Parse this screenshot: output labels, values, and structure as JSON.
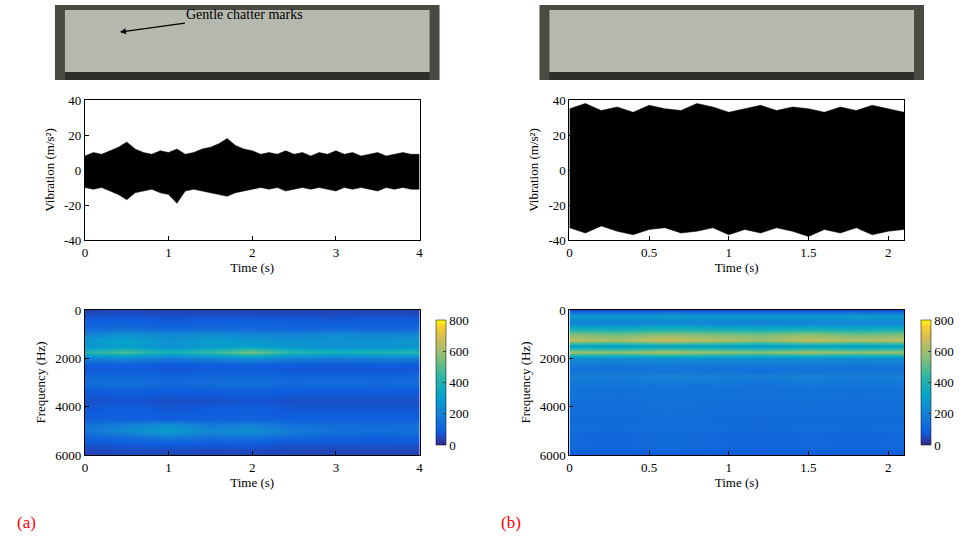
{
  "panels": [
    {
      "label": "(a)",
      "annotation": "Gentle chatter marks"
    },
    {
      "label": "(b)"
    }
  ],
  "chart_data": [
    {
      "panel": "(a)",
      "type": "line",
      "color": "#000000",
      "x": [
        0,
        0.1,
        0.2,
        0.3,
        0.4,
        0.5,
        0.6,
        0.7,
        0.8,
        0.9,
        1,
        1.1,
        1.2,
        1.3,
        1.4,
        1.5,
        1.6,
        1.7,
        1.8,
        1.9,
        2,
        2.1,
        2.2,
        2.3,
        2.4,
        2.5,
        2.6,
        2.7,
        2.8,
        2.9,
        3,
        3.1,
        3.2,
        3.3,
        3.4,
        3.5,
        3.6,
        3.7,
        3.8,
        3.9,
        4
      ],
      "upper": [
        8,
        10,
        9,
        11,
        13,
        16,
        12,
        10,
        9,
        11,
        10,
        12,
        9,
        10,
        12,
        13,
        15,
        18,
        14,
        12,
        11,
        9,
        10,
        9,
        11,
        9,
        10,
        8,
        10,
        9,
        11,
        9,
        10,
        8,
        9,
        10,
        8,
        9,
        10,
        9,
        9
      ],
      "lower": [
        -10,
        -11,
        -10,
        -12,
        -14,
        -17,
        -13,
        -12,
        -11,
        -13,
        -14,
        -19,
        -12,
        -11,
        -12,
        -13,
        -14,
        -15,
        -13,
        -12,
        -11,
        -10,
        -11,
        -10,
        -12,
        -11,
        -10,
        -11,
        -10,
        -11,
        -12,
        -10,
        -11,
        -10,
        -11,
        -12,
        -10,
        -11,
        -10,
        -11,
        -11
      ],
      "xlabel": "Time (s)",
      "ylabel": "Vibration (m/s²)",
      "xlim": [
        0,
        4
      ],
      "xticks": [
        0,
        1,
        2,
        3,
        4
      ],
      "ylim": [
        -40,
        40
      ],
      "yticks": [
        -40,
        -20,
        0,
        20,
        40
      ]
    },
    {
      "panel": "(a)",
      "type": "heatmap",
      "x": [
        0,
        0.5,
        1,
        1.5,
        2,
        2.5,
        3,
        3.5,
        4
      ],
      "y": [
        0,
        250,
        500,
        750,
        1000,
        1250,
        1500,
        1750,
        2000,
        2250,
        2500,
        2750,
        3000,
        3250,
        3500,
        3750,
        4000,
        4250,
        4500,
        4750,
        5000,
        5250,
        5500,
        5750,
        6000
      ],
      "z": [
        [
          40,
          40,
          40,
          40,
          40,
          40,
          40,
          40,
          40
        ],
        [
          60,
          70,
          60,
          65,
          60,
          60,
          60,
          65,
          60
        ],
        [
          90,
          100,
          80,
          90,
          100,
          90,
          80,
          90,
          85
        ],
        [
          120,
          140,
          110,
          130,
          120,
          110,
          120,
          110,
          120
        ],
        [
          200,
          250,
          220,
          230,
          210,
          200,
          220,
          210,
          200
        ],
        [
          280,
          320,
          260,
          300,
          280,
          250,
          270,
          260,
          280
        ],
        [
          260,
          300,
          250,
          280,
          300,
          260,
          240,
          250,
          260
        ],
        [
          420,
          480,
          380,
          450,
          550,
          420,
          380,
          400,
          420
        ],
        [
          200,
          230,
          180,
          210,
          250,
          200,
          190,
          200,
          190
        ],
        [
          90,
          100,
          80,
          90,
          100,
          90,
          80,
          90,
          90
        ],
        [
          70,
          80,
          70,
          75,
          80,
          70,
          70,
          70,
          70
        ],
        [
          110,
          120,
          100,
          110,
          120,
          100,
          110,
          100,
          110
        ],
        [
          140,
          150,
          130,
          140,
          150,
          130,
          140,
          130,
          140
        ],
        [
          90,
          100,
          90,
          95,
          100,
          90,
          90,
          90,
          90
        ],
        [
          70,
          80,
          70,
          75,
          80,
          70,
          70,
          70,
          70
        ],
        [
          60,
          70,
          60,
          60,
          70,
          60,
          60,
          60,
          60
        ],
        [
          70,
          80,
          70,
          75,
          80,
          70,
          70,
          70,
          70
        ],
        [
          80,
          90,
          80,
          85,
          90,
          80,
          80,
          80,
          80
        ],
        [
          90,
          100,
          90,
          100,
          110,
          90,
          90,
          90,
          90
        ],
        [
          150,
          200,
          250,
          180,
          200,
          150,
          140,
          130,
          140
        ],
        [
          160,
          230,
          300,
          220,
          250,
          180,
          150,
          140,
          150
        ],
        [
          100,
          140,
          180,
          150,
          160,
          120,
          100,
          90,
          100
        ],
        [
          70,
          80,
          90,
          80,
          80,
          70,
          70,
          70,
          70
        ],
        [
          50,
          60,
          60,
          55,
          60,
          50,
          50,
          50,
          50
        ],
        [
          40,
          40,
          40,
          40,
          40,
          40,
          40,
          40,
          40
        ]
      ],
      "xlabel": "Time (s)",
      "ylabel": "Frequency (Hz)",
      "xlim": [
        0,
        4
      ],
      "xticks": [
        0,
        1,
        2,
        3,
        4
      ],
      "ylim": [
        6000,
        0
      ],
      "yticks": [
        0,
        2000,
        4000,
        6000
      ],
      "zlim": [
        0,
        800
      ],
      "zticks": [
        0,
        200,
        400,
        600,
        800
      ]
    },
    {
      "panel": "(b)",
      "type": "line",
      "color": "#000000",
      "x": [
        0,
        0.1,
        0.2,
        0.3,
        0.4,
        0.5,
        0.6,
        0.7,
        0.8,
        0.9,
        1,
        1.1,
        1.2,
        1.3,
        1.4,
        1.5,
        1.6,
        1.7,
        1.8,
        1.9,
        2,
        2.1
      ],
      "upper": [
        35,
        38,
        34,
        36,
        33,
        37,
        35,
        34,
        38,
        36,
        33,
        35,
        37,
        34,
        36,
        35,
        33,
        36,
        34,
        37,
        35,
        33
      ],
      "lower": [
        -33,
        -36,
        -32,
        -35,
        -37,
        -34,
        -33,
        -36,
        -35,
        -33,
        -37,
        -34,
        -36,
        -33,
        -35,
        -38,
        -34,
        -36,
        -33,
        -37,
        -35,
        -34
      ],
      "xlabel": "Time (s)",
      "ylabel": "Vibration (m/s²)",
      "xlim": [
        0,
        2.1
      ],
      "xticks": [
        0,
        0.5,
        1,
        1.5,
        2
      ],
      "ylim": [
        -40,
        40
      ],
      "yticks": [
        -40,
        -20,
        0,
        20,
        40
      ]
    },
    {
      "panel": "(b)",
      "type": "heatmap",
      "x": [
        0,
        0.3,
        0.6,
        0.9,
        1.2,
        1.5,
        1.8,
        2.1
      ],
      "y": [
        0,
        250,
        500,
        750,
        1000,
        1250,
        1500,
        1750,
        2000,
        2250,
        2500,
        2750,
        3000,
        3250,
        3500,
        3750,
        4000,
        4250,
        4500,
        4750,
        5000,
        5250,
        5500,
        5750,
        6000
      ],
      "z": [
        [
          60,
          60,
          60,
          60,
          60,
          60,
          60,
          60
        ],
        [
          300,
          280,
          300,
          290,
          300,
          280,
          300,
          290
        ],
        [
          200,
          190,
          210,
          200,
          190,
          200,
          210,
          200
        ],
        [
          350,
          340,
          360,
          350,
          330,
          350,
          340,
          350
        ],
        [
          550,
          520,
          560,
          540,
          530,
          560,
          520,
          540
        ],
        [
          650,
          620,
          680,
          640,
          600,
          660,
          630,
          650
        ],
        [
          300,
          290,
          310,
          300,
          280,
          300,
          290,
          300
        ],
        [
          600,
          580,
          620,
          590,
          570,
          610,
          580,
          600
        ],
        [
          250,
          240,
          260,
          250,
          240,
          250,
          240,
          250
        ],
        [
          180,
          170,
          190,
          180,
          175,
          185,
          170,
          180
        ],
        [
          150,
          145,
          155,
          150,
          140,
          150,
          145,
          150
        ],
        [
          200,
          190,
          210,
          200,
          195,
          205,
          190,
          200
        ],
        [
          170,
          165,
          175,
          170,
          160,
          170,
          165,
          170
        ],
        [
          150,
          145,
          155,
          150,
          140,
          150,
          145,
          150
        ],
        [
          160,
          150,
          165,
          160,
          155,
          160,
          150,
          160
        ],
        [
          140,
          135,
          145,
          140,
          130,
          140,
          135,
          140
        ],
        [
          150,
          145,
          155,
          150,
          140,
          150,
          145,
          150
        ],
        [
          140,
          135,
          145,
          140,
          130,
          140,
          135,
          140
        ],
        [
          130,
          125,
          135,
          130,
          120,
          130,
          125,
          130
        ],
        [
          140,
          135,
          145,
          140,
          130,
          140,
          135,
          140
        ],
        [
          130,
          125,
          135,
          130,
          120,
          130,
          125,
          130
        ],
        [
          120,
          115,
          125,
          120,
          110,
          120,
          115,
          120
        ],
        [
          130,
          125,
          135,
          130,
          120,
          130,
          125,
          130
        ],
        [
          110,
          105,
          115,
          110,
          100,
          110,
          105,
          110
        ],
        [
          80,
          80,
          80,
          80,
          80,
          80,
          80,
          80
        ]
      ],
      "xlabel": "Time (s)",
      "ylabel": "Frequency (Hz)",
      "xlim": [
        0,
        2.1
      ],
      "xticks": [
        0,
        0.5,
        1,
        1.5,
        2
      ],
      "ylim": [
        6000,
        0
      ],
      "yticks": [
        0,
        2000,
        4000,
        6000
      ],
      "zlim": [
        0,
        800
      ],
      "zticks": [
        0,
        200,
        400,
        600,
        800
      ]
    }
  ]
}
